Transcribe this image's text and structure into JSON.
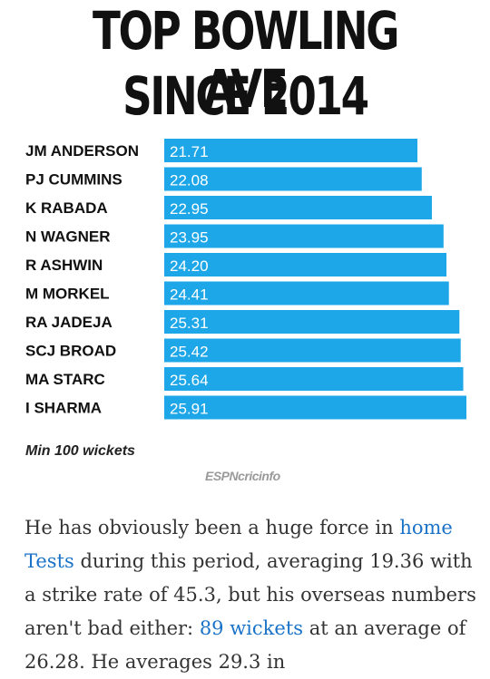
{
  "chart_data": {
    "type": "bar",
    "orientation": "horizontal",
    "title_lines": [
      "TOP BOWLING AVE",
      "SINCE 2014"
    ],
    "categories": [
      "JM ANDERSON",
      "PJ CUMMINS",
      "K RABADA",
      "N WAGNER",
      "R ASHWIN",
      "M MORKEL",
      "RA JADEJA",
      "SCJ BROAD",
      "MA STARC",
      "I SHARMA"
    ],
    "values": [
      21.71,
      22.08,
      22.95,
      23.95,
      24.2,
      24.41,
      25.31,
      25.42,
      25.64,
      25.91
    ],
    "value_labels": [
      "21.71",
      "22.08",
      "22.95",
      "23.95",
      "24.20",
      "24.41",
      "25.31",
      "25.42",
      "25.64",
      "25.91"
    ],
    "bar_color": "#1ea7e8",
    "grid": false,
    "legend": "none"
  },
  "footnote": "Min 100 wickets",
  "source": "ESPNcricinfo",
  "article": {
    "p1": "He has obviously been a huge force in ",
    "link1": "home Tests",
    "p2": " during this period, averaging 19.36 with a strike rate of 45.3, but his overseas numbers aren't bad either: ",
    "link2": "89 wickets",
    "p3": " at an average of 26.28. He averages 29.3 in"
  },
  "colors": {
    "link": "#1a73c8",
    "text": "#333333",
    "bar": "#1ea7e8"
  }
}
